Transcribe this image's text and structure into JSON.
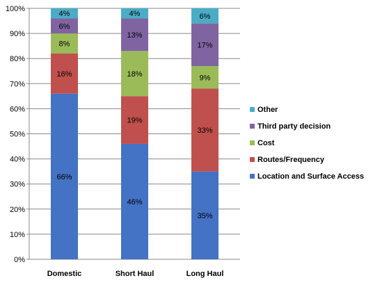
{
  "chart_data": {
    "type": "bar",
    "stacked": true,
    "categories": [
      "Domestic",
      "Short Haul",
      "Long Haul"
    ],
    "series": [
      {
        "name": "Location and Surface Access",
        "color": "#4472C4",
        "values": [
          66,
          46,
          35
        ],
        "labels": [
          "66%",
          "46%",
          "35%"
        ]
      },
      {
        "name": "Routes/Frequency",
        "color": "#C0504D",
        "values": [
          16,
          19,
          33
        ],
        "labels": [
          "16%",
          "19%",
          "33%"
        ]
      },
      {
        "name": "Cost",
        "color": "#9BBB59",
        "values": [
          8,
          18,
          9
        ],
        "labels": [
          "8%",
          "18%",
          "9%"
        ]
      },
      {
        "name": "Third party decision",
        "color": "#8064A2",
        "values": [
          6,
          13,
          17
        ],
        "labels": [
          "6%",
          "13%",
          "17%"
        ]
      },
      {
        "name": "Other",
        "color": "#4BACC6",
        "values": [
          4,
          4,
          6
        ],
        "labels": [
          "4%",
          "4%",
          "6%"
        ]
      }
    ],
    "ylim": [
      0,
      100
    ],
    "yticks": [
      "0%",
      "10%",
      "20%",
      "30%",
      "40%",
      "50%",
      "60%",
      "70%",
      "80%",
      "90%",
      "100%"
    ],
    "grid": true,
    "legend_position": "right",
    "legend_order": [
      "Other",
      "Third party decision",
      "Cost",
      "Routes/Frequency",
      "Location and Surface Access"
    ]
  }
}
